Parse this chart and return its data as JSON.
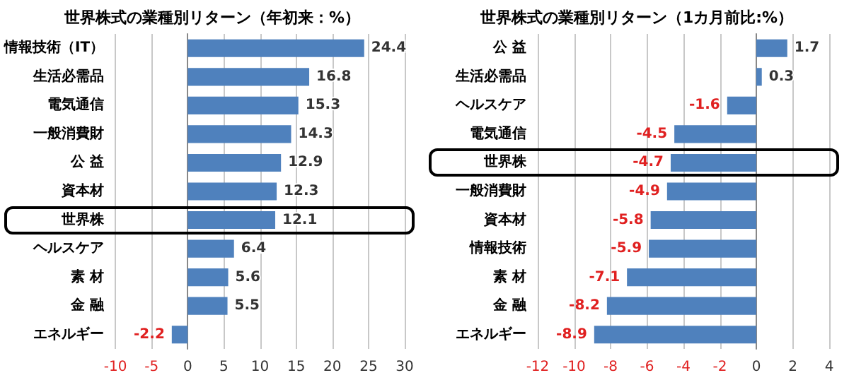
{
  "chart_data": [
    {
      "type": "bar",
      "orientation": "horizontal",
      "title": "世界株式の業種別リターン（年初来：%）",
      "categories": [
        "情報技術（IT）",
        "生活必需品",
        "電気通信",
        "一般消費財",
        "公 益",
        "資本材",
        "世界株",
        "ヘルスケア",
        "素 材",
        "金 融",
        "エネルギー"
      ],
      "values": [
        24.4,
        16.8,
        15.3,
        14.3,
        12.9,
        12.3,
        12.1,
        6.4,
        5.6,
        5.5,
        -2.2
      ],
      "color": "#4f81bd",
      "xlim": [
        -10,
        30
      ],
      "xticks": [
        -10,
        -5,
        0,
        5,
        10,
        15,
        20,
        25,
        30
      ],
      "grid": "x",
      "data_labels": true
    },
    {
      "type": "bar",
      "orientation": "horizontal",
      "title": "世界株式の業種別リターン（1カ月前比:%）",
      "categories": [
        "公 益",
        "生活必需品",
        "ヘルスケア",
        "電気通信",
        "世界株",
        "一般消費財",
        "資本材",
        "情報技術",
        "素 材",
        "金 融",
        "エネルギー"
      ],
      "values": [
        1.7,
        0.3,
        -1.6,
        -4.5,
        -4.7,
        -4.9,
        -5.8,
        -5.9,
        -7.1,
        -8.2,
        -8.9
      ],
      "color": "#4f81bd",
      "xlim": [
        -12,
        4
      ],
      "xticks": [
        -12,
        -10,
        -8,
        -6,
        -4,
        -2,
        0,
        2,
        4
      ],
      "grid": "x",
      "data_labels": true
    }
  ]
}
